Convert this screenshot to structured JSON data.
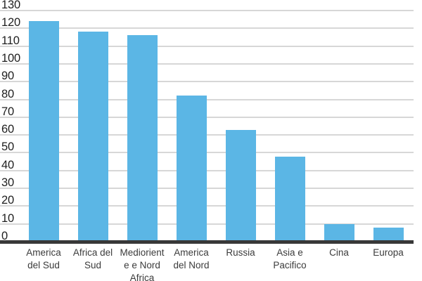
{
  "chart_data": {
    "type": "bar",
    "title": "",
    "xlabel": "",
    "ylabel": "",
    "categories": [
      "America del Sud",
      "Africa del Sud",
      "Medioriente e Nord Africa",
      "America del Nord",
      "Russia",
      "Asia e Pacifico",
      "Cina",
      "Europa"
    ],
    "category_display_lines": [
      [
        "America",
        "del Sud"
      ],
      [
        "Africa del",
        "Sud"
      ],
      [
        "Mediorient",
        "e e Nord",
        "Africa"
      ],
      [
        "America",
        "del Nord"
      ],
      [
        "Russia"
      ],
      [
        "Asia e",
        "Pacifico"
      ],
      [
        "Cina"
      ],
      [
        "Europa"
      ]
    ],
    "values": [
      124,
      118,
      116,
      82,
      63,
      48,
      10,
      8
    ],
    "ylim": [
      0,
      130
    ],
    "ytick_step": 10,
    "ytick_labels": [
      "0",
      "10",
      "20",
      "30",
      "40",
      "50",
      "60",
      "70",
      "80",
      "90",
      "100",
      "110",
      "120",
      "130"
    ],
    "grid": "horizontal",
    "legend": "none",
    "colors": {
      "bar": "#5BB6E5",
      "gridline": "#d7d7d7",
      "baseline": "#383838",
      "ytick_text": "#1f1f1f",
      "category_text": "#3b3b3b",
      "background": "#ffffff"
    }
  }
}
